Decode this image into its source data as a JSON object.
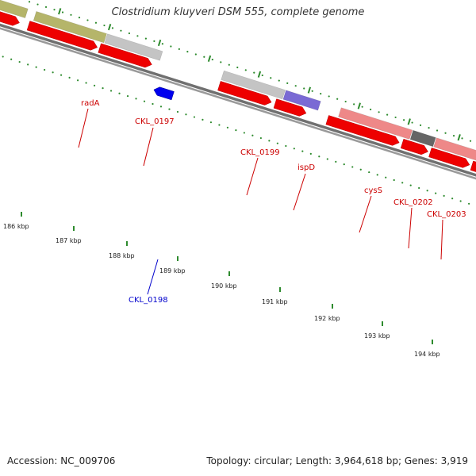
{
  "title": "Clostridium kluyveri DSM 555, complete genome",
  "footer": {
    "accession": "Accession: NC_009706",
    "stats": "Topology: circular; Length: 3,964,618 bp; Genes: 3,919"
  },
  "colors": {
    "forward_label": "#cc0000",
    "reverse_label": "#0000cc",
    "backbone": "#808080",
    "tick": "#2e8b2e",
    "cds_red": "#ee0000",
    "reverse_cds": "#0000ee"
  },
  "scale_ticks": [
    "186 kbp",
    "187 kbp",
    "188 kbp",
    "189 kbp",
    "190 kbp",
    "191 kbp",
    "192 kbp",
    "193 kbp",
    "194 kbp"
  ],
  "gene_labels": [
    {
      "name": "radA",
      "strand": "forward"
    },
    {
      "name": "CKL_0197",
      "strand": "forward"
    },
    {
      "name": "CKL_0199",
      "strand": "forward"
    },
    {
      "name": "ispD",
      "strand": "forward"
    },
    {
      "name": "cysS",
      "strand": "forward"
    },
    {
      "name": "CKL_0202",
      "strand": "forward"
    },
    {
      "name": "CKL_0203",
      "strand": "forward"
    },
    {
      "name": "CKL_0198",
      "strand": "reverse"
    }
  ]
}
